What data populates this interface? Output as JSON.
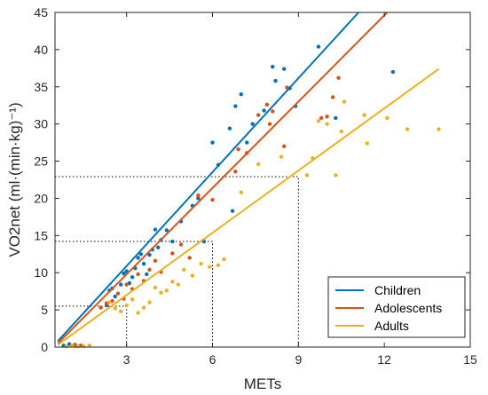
{
  "chart_data": {
    "type": "scatter",
    "title": "",
    "xlabel": "METs",
    "ylabel": "VO2net (ml·(min·kg)⁻¹)",
    "xlim": [
      0.5,
      15
    ],
    "ylim": [
      0,
      45
    ],
    "xticks": [
      3,
      6,
      9,
      12,
      15
    ],
    "yticks": [
      0,
      5,
      10,
      15,
      20,
      25,
      30,
      35,
      40,
      45
    ],
    "grid": false,
    "legend_position": "bottom-right",
    "series": [
      {
        "name": "Children",
        "color": "#0072BD",
        "fit_line": [
          [
            0.6,
            0.8
          ],
          [
            11.1,
            45
          ]
        ],
        "points": [
          [
            0.8,
            0.2
          ],
          [
            1.0,
            0.4
          ],
          [
            1.2,
            0.3
          ],
          [
            1.4,
            0.2
          ],
          [
            2.3,
            5.6
          ],
          [
            2.4,
            7.6
          ],
          [
            2.5,
            7.9
          ],
          [
            2.6,
            6.8
          ],
          [
            2.8,
            8.4
          ],
          [
            2.9,
            9.9
          ],
          [
            3.0,
            10.2
          ],
          [
            3.1,
            8.6
          ],
          [
            3.2,
            9.4
          ],
          [
            3.3,
            10.6
          ],
          [
            3.4,
            12.0
          ],
          [
            3.5,
            12.5
          ],
          [
            3.6,
            11.2
          ],
          [
            3.7,
            9.8
          ],
          [
            3.8,
            12.4
          ],
          [
            3.9,
            13.1
          ],
          [
            4.0,
            15.8
          ],
          [
            4.1,
            13.4
          ],
          [
            4.2,
            14.4
          ],
          [
            4.4,
            15.7
          ],
          [
            4.6,
            14.2
          ],
          [
            4.9,
            16.9
          ],
          [
            5.3,
            19.0
          ],
          [
            5.5,
            20.0
          ],
          [
            5.7,
            14.2
          ],
          [
            6.0,
            27.5
          ],
          [
            6.2,
            24.5
          ],
          [
            6.6,
            29.4
          ],
          [
            6.8,
            32.4
          ],
          [
            7.0,
            34.0
          ],
          [
            6.7,
            18.3
          ],
          [
            7.2,
            27.5
          ],
          [
            7.4,
            30.0
          ],
          [
            7.8,
            31.8
          ],
          [
            8.1,
            37.7
          ],
          [
            8.2,
            35.8
          ],
          [
            8.5,
            37.4
          ],
          [
            8.7,
            34.8
          ],
          [
            8.9,
            32.4
          ],
          [
            9.7,
            40.4
          ],
          [
            10.3,
            30.8
          ],
          [
            12.3,
            37.0
          ]
        ]
      },
      {
        "name": "Adolescents",
        "color": "#D95319",
        "fit_line": [
          [
            0.6,
            0.5
          ],
          [
            12.1,
            45
          ]
        ],
        "points": [
          [
            1.2,
            0.3
          ],
          [
            1.4,
            0.2
          ],
          [
            2.1,
            5.3
          ],
          [
            2.3,
            5.9
          ],
          [
            2.5,
            6.2
          ],
          [
            2.7,
            7.2
          ],
          [
            2.9,
            6.5
          ],
          [
            3.0,
            8.4
          ],
          [
            3.2,
            7.8
          ],
          [
            3.4,
            9.8
          ],
          [
            3.6,
            8.9
          ],
          [
            3.8,
            10.4
          ],
          [
            4.0,
            11.6
          ],
          [
            4.2,
            10.1
          ],
          [
            4.6,
            12.6
          ],
          [
            4.9,
            13.8
          ],
          [
            5.2,
            12.0
          ],
          [
            5.5,
            20.4
          ],
          [
            6.0,
            19.8
          ],
          [
            6.8,
            23.6
          ],
          [
            6.9,
            26.6
          ],
          [
            7.2,
            26.1
          ],
          [
            7.6,
            31.2
          ],
          [
            7.9,
            32.6
          ],
          [
            8.0,
            30.0
          ],
          [
            8.1,
            31.7
          ],
          [
            8.5,
            27.0
          ],
          [
            8.6,
            34.9
          ],
          [
            9.8,
            30.8
          ],
          [
            10.0,
            31.0
          ],
          [
            10.2,
            33.6
          ],
          [
            10.4,
            36.2
          ]
        ]
      },
      {
        "name": "Adults",
        "color": "#EDB120",
        "fit_line": [
          [
            0.6,
            0.3
          ],
          [
            13.9,
            37.4
          ]
        ],
        "points": [
          [
            0.9,
            0.1
          ],
          [
            1.1,
            0.2
          ],
          [
            1.3,
            0.1
          ],
          [
            1.5,
            0.1
          ],
          [
            1.7,
            0.2
          ],
          [
            2.4,
            6.0
          ],
          [
            2.6,
            5.2
          ],
          [
            2.8,
            4.8
          ],
          [
            3.0,
            5.6
          ],
          [
            3.2,
            6.4
          ],
          [
            3.4,
            4.6
          ],
          [
            3.6,
            5.3
          ],
          [
            3.8,
            6.0
          ],
          [
            4.0,
            8.0
          ],
          [
            4.2,
            7.3
          ],
          [
            4.4,
            7.6
          ],
          [
            4.6,
            8.8
          ],
          [
            4.8,
            8.4
          ],
          [
            5.0,
            10.4
          ],
          [
            5.3,
            9.6
          ],
          [
            5.6,
            11.2
          ],
          [
            5.9,
            10.8
          ],
          [
            6.2,
            11.0
          ],
          [
            6.4,
            11.8
          ],
          [
            7.0,
            20.8
          ],
          [
            7.6,
            24.6
          ],
          [
            8.4,
            25.6
          ],
          [
            9.3,
            23.1
          ],
          [
            9.5,
            25.4
          ],
          [
            9.7,
            30.4
          ],
          [
            10.0,
            30.0
          ],
          [
            10.3,
            23.1
          ],
          [
            10.5,
            29.0
          ],
          [
            10.6,
            33.0
          ],
          [
            11.3,
            31.2
          ],
          [
            11.4,
            27.4
          ],
          [
            12.1,
            30.8
          ],
          [
            12.8,
            29.3
          ],
          [
            13.9,
            29.3
          ]
        ]
      }
    ],
    "reference_lines": [
      {
        "x": 3,
        "y": 5.5
      },
      {
        "x": 6,
        "y": 14.2
      },
      {
        "x": 9,
        "y": 22.9
      }
    ]
  }
}
